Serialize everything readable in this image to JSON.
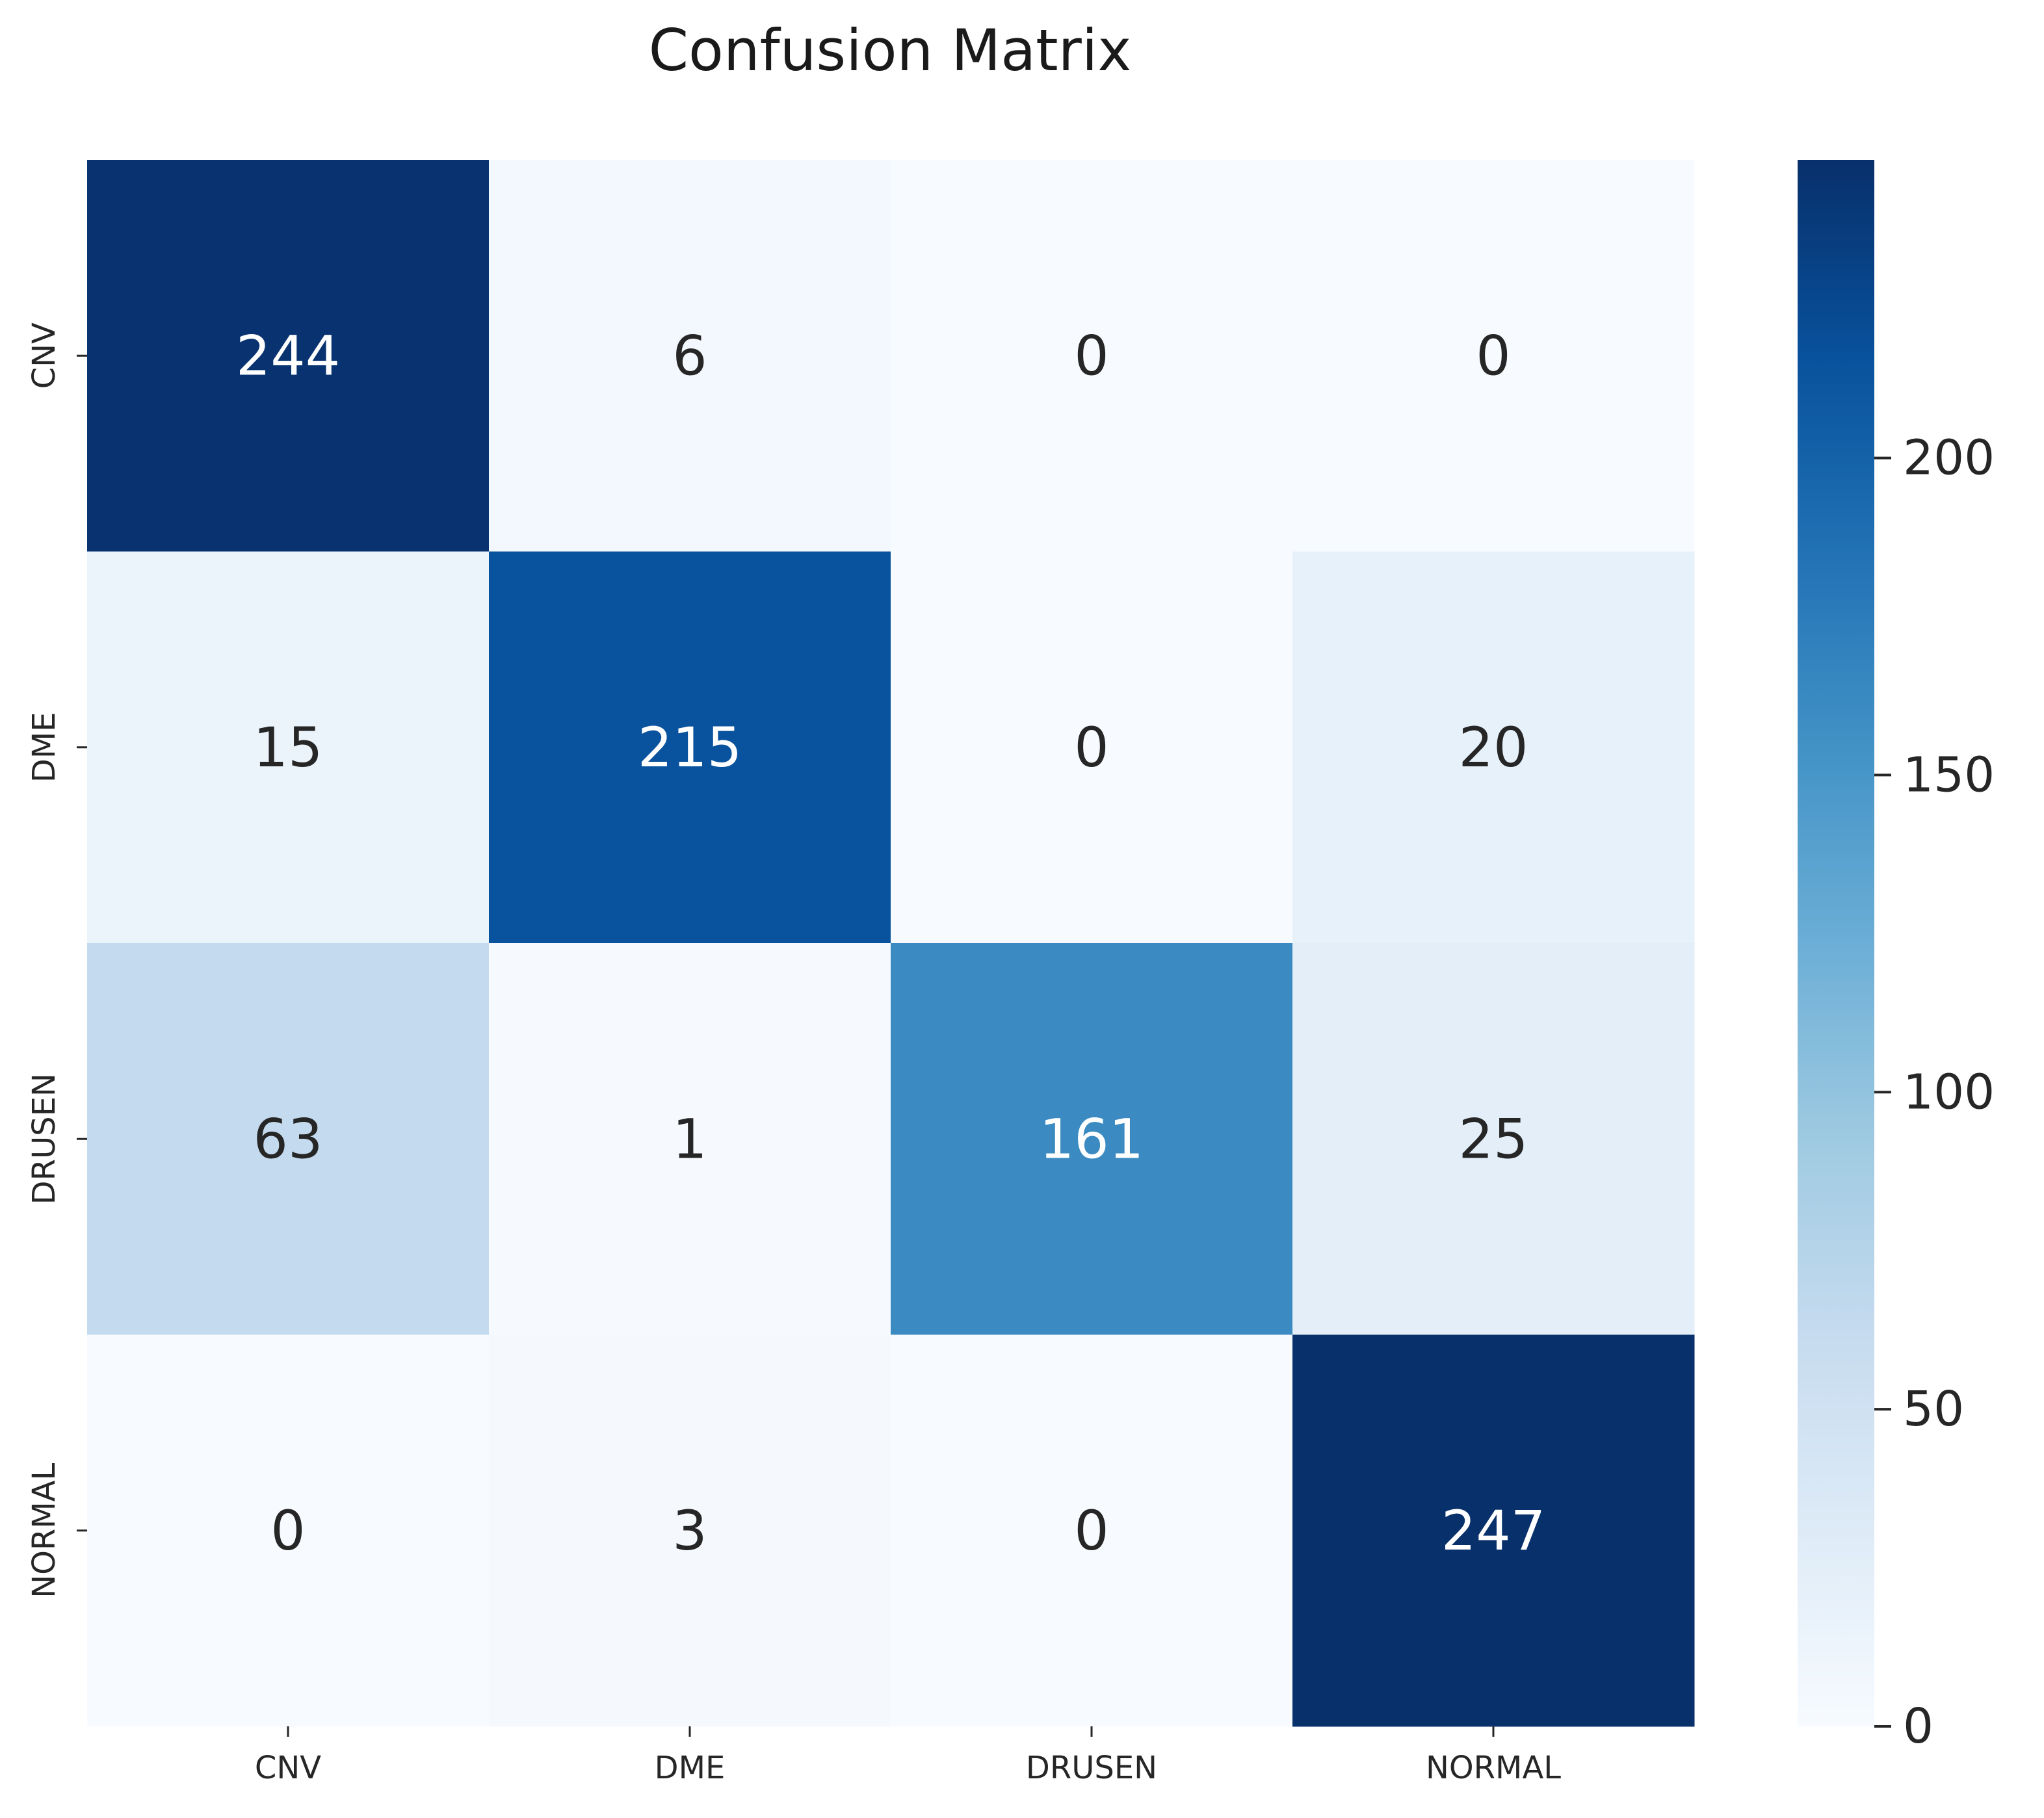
{
  "chart_data": {
    "type": "heatmap",
    "title": "Confusion Matrix",
    "xlabel": "",
    "ylabel": "",
    "x_labels": [
      "CNV",
      "DME",
      "DRUSEN",
      "NORMAL"
    ],
    "y_labels": [
      "CNV",
      "DME",
      "DRUSEN",
      "NORMAL"
    ],
    "values": [
      [
        244,
        6,
        0,
        0
      ],
      [
        15,
        215,
        0,
        20
      ],
      [
        63,
        1,
        161,
        25
      ],
      [
        0,
        3,
        0,
        247
      ]
    ],
    "colormap": "Blues",
    "vmin": 0,
    "vmax": 247,
    "colorbar_ticks": [
      0,
      50,
      100,
      150,
      200
    ],
    "colorbar_tick_labels": [
      "0",
      "50",
      "100",
      "150",
      "200"
    ],
    "annotation_light_color": "#ffffff",
    "annotation_dark_color": "#262626"
  }
}
